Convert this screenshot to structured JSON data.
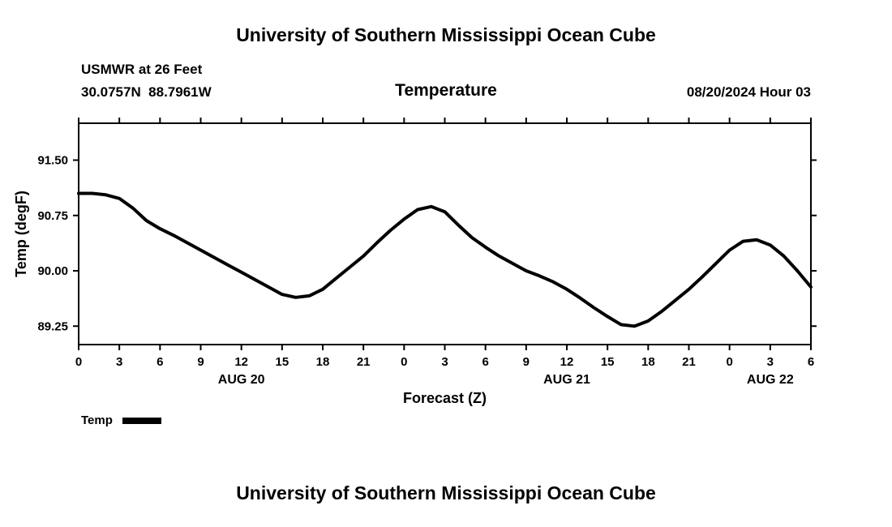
{
  "titles": {
    "top": "University of Southern Mississippi Ocean Cube",
    "bottom": "University of Southern Mississippi Ocean Cube"
  },
  "header": {
    "station": "USMWR at 26 Feet",
    "coords": "30.0757N  88.7961W",
    "chart_title": "Temperature",
    "valid": "08/20/2024 Hour 03"
  },
  "legend": {
    "label": "Temp",
    "color": "#000000"
  },
  "chart_data": {
    "type": "line",
    "title": "Temperature",
    "xlabel": "Forecast (Z)",
    "ylabel": "Temp (degF)",
    "xlim": [
      0,
      54
    ],
    "ylim": [
      89.0,
      92.0
    ],
    "grid": false,
    "legend_position": "below-left",
    "yticks": [
      {
        "v": 89.25,
        "label": "89.25"
      },
      {
        "v": 90.0,
        "label": "90.00"
      },
      {
        "v": 90.75,
        "label": "90.75"
      },
      {
        "v": 91.5,
        "label": "91.50"
      }
    ],
    "xticks": [
      {
        "v": 0,
        "label": "0"
      },
      {
        "v": 3,
        "label": "3"
      },
      {
        "v": 6,
        "label": "6"
      },
      {
        "v": 9,
        "label": "9"
      },
      {
        "v": 12,
        "label": "12"
      },
      {
        "v": 15,
        "label": "15"
      },
      {
        "v": 18,
        "label": "18"
      },
      {
        "v": 21,
        "label": "21"
      },
      {
        "v": 24,
        "label": "0"
      },
      {
        "v": 27,
        "label": "3"
      },
      {
        "v": 30,
        "label": "6"
      },
      {
        "v": 33,
        "label": "9"
      },
      {
        "v": 36,
        "label": "12"
      },
      {
        "v": 39,
        "label": "15"
      },
      {
        "v": 42,
        "label": "18"
      },
      {
        "v": 45,
        "label": "21"
      },
      {
        "v": 48,
        "label": "0"
      },
      {
        "v": 51,
        "label": "3"
      },
      {
        "v": 54,
        "label": "6"
      }
    ],
    "day_labels": [
      {
        "v": 12,
        "label": "AUG 20"
      },
      {
        "v": 36,
        "label": "AUG 21"
      },
      {
        "v": 51,
        "label": "AUG 22"
      }
    ],
    "series": [
      {
        "name": "Temp",
        "color": "#000000",
        "width": 4,
        "x": [
          0,
          1,
          2,
          3,
          4,
          5,
          6,
          7,
          8,
          9,
          10,
          11,
          12,
          13,
          14,
          15,
          16,
          17,
          18,
          19,
          20,
          21,
          22,
          23,
          24,
          25,
          26,
          27,
          28,
          29,
          30,
          31,
          32,
          33,
          34,
          35,
          36,
          37,
          38,
          39,
          40,
          41,
          42,
          43,
          44,
          45,
          46,
          47,
          48,
          49,
          50,
          51,
          52,
          53,
          54
        ],
        "values": [
          91.05,
          91.05,
          91.03,
          90.98,
          90.85,
          90.68,
          90.57,
          90.48,
          90.38,
          90.28,
          90.18,
          90.08,
          89.98,
          89.88,
          89.78,
          89.68,
          89.64,
          89.66,
          89.75,
          89.9,
          90.05,
          90.2,
          90.38,
          90.55,
          90.7,
          90.83,
          90.87,
          90.8,
          90.62,
          90.45,
          90.32,
          90.2,
          90.1,
          90.0,
          89.93,
          89.85,
          89.75,
          89.63,
          89.5,
          89.38,
          89.27,
          89.25,
          89.32,
          89.45,
          89.6,
          89.75,
          89.92,
          90.1,
          90.28,
          90.4,
          90.42,
          90.35,
          90.2,
          90.0,
          89.78
        ]
      }
    ]
  }
}
